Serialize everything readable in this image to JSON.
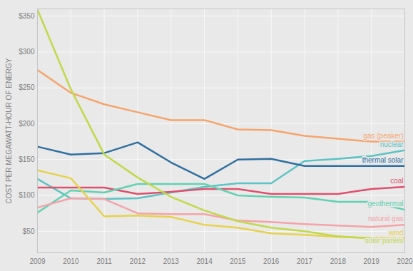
{
  "chart_data": {
    "type": "line",
    "ylabel": "COST PER MEGAWATT-HOUR OF ENERGY",
    "x": [
      2009,
      2010,
      2011,
      2012,
      2013,
      2014,
      2015,
      2016,
      2017,
      2018,
      2019,
      2020
    ],
    "series": [
      {
        "name": "gas (peaker)",
        "color": "#f5a46c",
        "values": [
          275,
          243,
          227,
          216,
          205,
          205,
          192,
          191,
          183,
          179,
          175,
          175
        ]
      },
      {
        "name": "nuclear",
        "color": "#5cc3c3",
        "values": [
          123,
          96,
          95,
          96,
          104,
          112,
          117,
          117,
          148,
          151,
          155,
          163
        ]
      },
      {
        "name": "thermal solar",
        "color": "#2f6f9f",
        "values": [
          168,
          157,
          159,
          174,
          146,
          123,
          150,
          151,
          141,
          141,
          141,
          141
        ]
      },
      {
        "name": "coal",
        "color": "#df4f6c",
        "values": [
          111,
          111,
          111,
          102,
          105,
          109,
          109,
          102,
          102,
          102,
          109,
          112
        ]
      },
      {
        "name": "geothermal",
        "color": "#62d1b2",
        "values": [
          76,
          107,
          104,
          116,
          116,
          116,
          100,
          98,
          97,
          91,
          91,
          80
        ]
      },
      {
        "name": "natural gas",
        "color": "#f4a3a8",
        "values": [
          83,
          96,
          95,
          75,
          74,
          74,
          65,
          63,
          60,
          58,
          56,
          59
        ]
      },
      {
        "name": "wind",
        "color": "#e6d24e",
        "values": [
          135,
          124,
          71,
          72,
          70,
          59,
          55,
          47,
          45,
          42,
          41,
          40
        ]
      },
      {
        "name": "solar panels",
        "color": "#c2d84a",
        "values": [
          359,
          248,
          157,
          125,
          98,
          79,
          64,
          55,
          50,
          43,
          40,
          37
        ]
      }
    ],
    "xlim": [
      2009,
      2020
    ],
    "xticks": [
      2009,
      2010,
      2011,
      2012,
      2013,
      2014,
      2015,
      2016,
      2017,
      2018,
      2019,
      2020
    ],
    "ylim": [
      20,
      360
    ],
    "yticks": [
      {
        "value": 50,
        "label": "$50"
      },
      {
        "value": 100,
        "label": "$100"
      },
      {
        "value": 150,
        "label": "$150"
      },
      {
        "value": 200,
        "label": "$200"
      },
      {
        "value": 250,
        "label": "$250"
      },
      {
        "value": 300,
        "label": "$300"
      },
      {
        "value": 350,
        "label": "$350"
      }
    ],
    "grid": true
  }
}
